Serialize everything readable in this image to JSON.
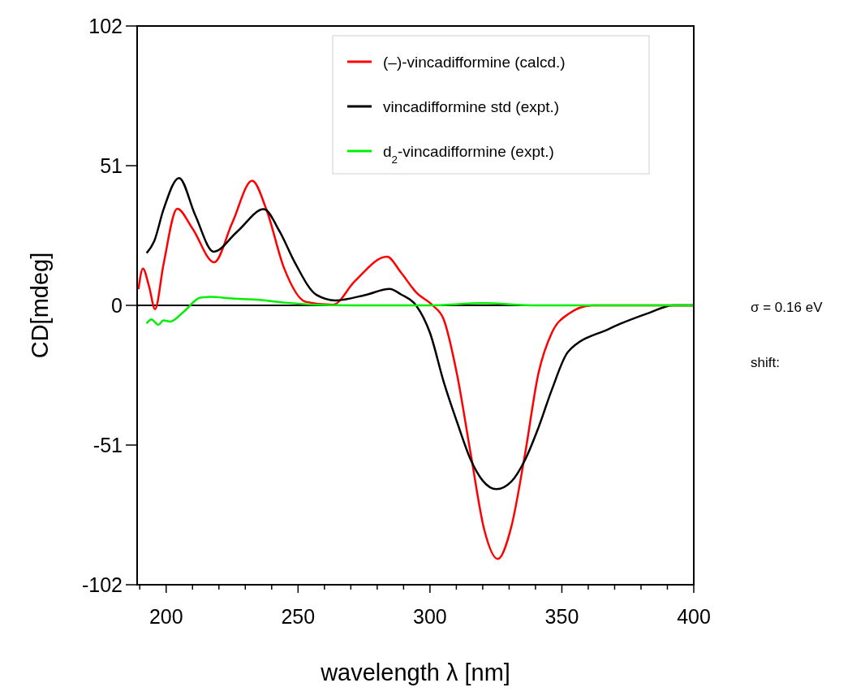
{
  "chart_data": {
    "type": "line",
    "xlabel": "wavelength λ [nm]",
    "ylabel": "CD[mdeg]",
    "xlim": [
      189,
      400
    ],
    "ylim": [
      -102,
      102
    ],
    "xticks": [
      {
        "value": 190,
        "label": null
      },
      200,
      {
        "value": 210,
        "label": null
      },
      {
        "value": 220,
        "label": null
      },
      {
        "value": 230,
        "label": null
      },
      {
        "value": 240,
        "label": null
      },
      250,
      {
        "value": 260,
        "label": null
      },
      {
        "value": 270,
        "label": null
      },
      {
        "value": 280,
        "label": null
      },
      {
        "value": 290,
        "label": null
      },
      300,
      {
        "value": 310,
        "label": null
      },
      {
        "value": 320,
        "label": null
      },
      {
        "value": 330,
        "label": null
      },
      {
        "value": 340,
        "label": null
      },
      350,
      {
        "value": 360,
        "label": null
      },
      {
        "value": 370,
        "label": null
      },
      {
        "value": 380,
        "label": null
      },
      {
        "value": 390,
        "label": null
      },
      400
    ],
    "yticks": [
      -102,
      -51,
      0,
      51,
      102
    ],
    "grid": false,
    "legend": "top right",
    "marker": "none",
    "line_style": "solid",
    "ref_lines": [
      {
        "axis": "y",
        "value": 0,
        "color": "#000000"
      }
    ],
    "annotations": [
      "σ = 0.16 eV",
      "shift:"
    ],
    "series": [
      {
        "name": "(–)-vincadifformine (calcd.)",
        "color": "#ff0000",
        "x": [
          189.5,
          191.2,
          193.5,
          195.8,
          199,
          204.2,
          210,
          218.2,
          225,
          232.6,
          238,
          244.7,
          252.9,
          263.2,
          271.4,
          283.7,
          289,
          294.8,
          301,
          305.2,
          310.2,
          315.5,
          320.6,
          325.7,
          330.8,
          336,
          341.1,
          346.2,
          352.4,
          361.6,
          380,
          400
        ],
        "values": [
          5.9,
          13.4,
          7,
          -1.4,
          15,
          35.3,
          28,
          15.7,
          30,
          45.5,
          35,
          13.6,
          1.3,
          0.2,
          8.7,
          17.8,
          12,
          4.7,
          0,
          -5.1,
          -24.9,
          -54.5,
          -82,
          -92.6,
          -81,
          -54.5,
          -24.9,
          -10,
          -3.2,
          0,
          0,
          0
        ]
      },
      {
        "name": "vincadifformine std (expt.)",
        "color": "#000000",
        "x": [
          192.6,
          195.5,
          199,
          204.9,
          211,
          218,
          227,
          237,
          243,
          248.8,
          257,
          264.2,
          275.5,
          284.7,
          289,
          294.9,
          300,
          305.2,
          310.3,
          315.5,
          320,
          325.2,
          330.8,
          336,
          341.1,
          346.2,
          352.4,
          367.8,
          383.2,
          392,
          400
        ],
        "values": [
          19.1,
          23.5,
          35,
          46.5,
          33,
          19.6,
          27,
          35.1,
          27,
          15.6,
          3.8,
          1.8,
          3.8,
          6,
          4,
          -0.2,
          -10,
          -27.9,
          -42.7,
          -56.5,
          -64,
          -67.1,
          -64.4,
          -56.5,
          -44.7,
          -30.8,
          -16.9,
          -8.6,
          -2.7,
          0,
          0
        ]
      },
      {
        "name": "d$_{2}$-vincadifformine (expt.)",
        "color": "#00ee00",
        "x": [
          192.6,
          194.4,
          197,
          199,
          201.6,
          206.8,
          212.9,
          217,
          225,
          234.4,
          245,
          254.9,
          270,
          300,
          320,
          340,
          360,
          400
        ],
        "values": [
          -6.6,
          -5.1,
          -7.1,
          -5.5,
          -5.9,
          -2.2,
          2.8,
          3.1,
          2.5,
          2.1,
          1,
          0.3,
          0,
          0,
          0.8,
          0,
          0,
          0
        ]
      }
    ]
  }
}
